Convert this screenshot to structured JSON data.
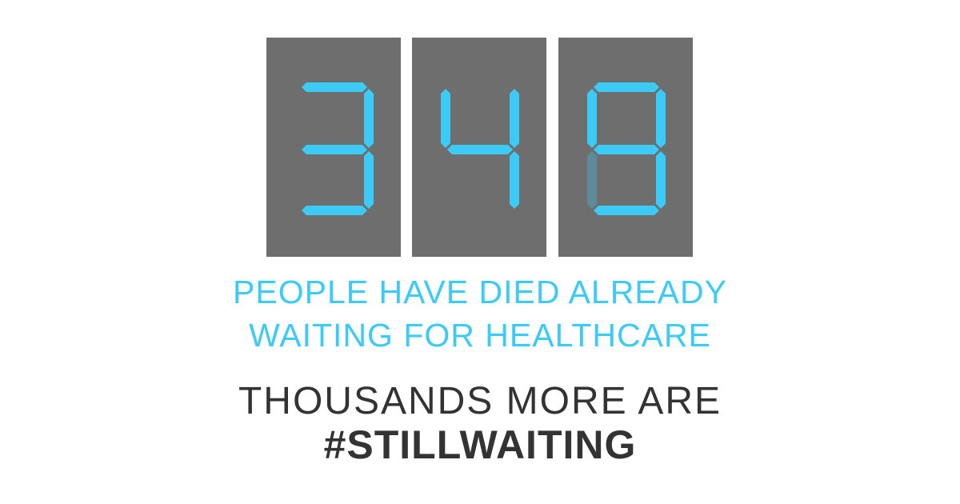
{
  "counter": {
    "digits": [
      3,
      4,
      8
    ],
    "panel_color": "#6e6e6e",
    "segment_color": "#3ccaf6",
    "dim_segment_color": "#5f8a99"
  },
  "text": {
    "line1": "PEOPLE HAVE DIED ALREADY",
    "line2": "WAITING FOR HEALTHCARE",
    "line3": "THOUSANDS MORE ARE",
    "hashtag": "#STILLWAITING"
  },
  "colors": {
    "accent": "#3ccaf6",
    "dark_text": "#333333",
    "background": "#ffffff"
  }
}
